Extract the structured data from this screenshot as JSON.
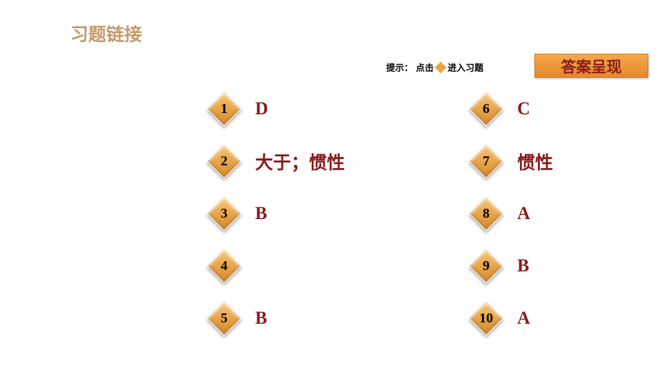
{
  "title": {
    "text": "习题链接",
    "color": "#c49a6c"
  },
  "hint": {
    "prefix": "提示：",
    "before": "点击",
    "after": "进入习题",
    "diamond_color": "#e8a54a"
  },
  "banner": {
    "text": "答案呈现",
    "text_color": "#8b1a1a"
  },
  "answer_color": "#8b1a1a",
  "diamond": {
    "gradient_light": "#f7c77a",
    "gradient_mid": "#e8a54a",
    "gradient_dark": "#d68a2f"
  },
  "left_items": [
    {
      "num": "1",
      "answer": "D"
    },
    {
      "num": "2",
      "answer": "大于；惯性"
    },
    {
      "num": "3",
      "answer": "B"
    },
    {
      "num": "4",
      "answer": ""
    },
    {
      "num": "5",
      "answer": "B"
    }
  ],
  "right_items": [
    {
      "num": "6",
      "answer": "C"
    },
    {
      "num": "7",
      "answer": "惯性"
    },
    {
      "num": "8",
      "answer": "A"
    },
    {
      "num": "9",
      "answer": "B"
    },
    {
      "num": "10",
      "answer": "A"
    }
  ]
}
